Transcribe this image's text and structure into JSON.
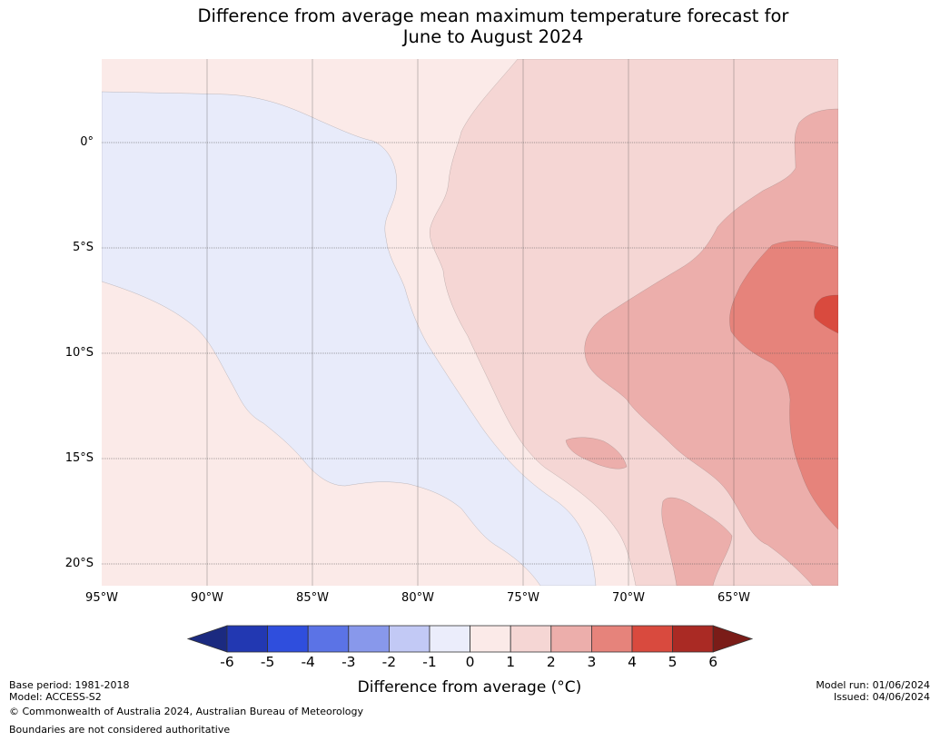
{
  "title": {
    "line1": "Difference from average mean maximum temperature forecast for",
    "line2": "June to August 2024"
  },
  "map": {
    "lat_labels": [
      "0°",
      "5°S",
      "10°S",
      "15°S",
      "20°S"
    ],
    "lon_labels": [
      "95°W",
      "90°W",
      "85°W",
      "80°W",
      "75°W",
      "70°W",
      "65°W"
    ],
    "colors": {
      "band_-1_0": "#e8ebfa",
      "band_0_1": "#fbeae8",
      "band_1_2": "#f5d6d4",
      "band_2_3": "#ecaeab",
      "band_3_4": "#e6837b",
      "band_4_5": "#d94a3e"
    }
  },
  "colorbar": {
    "ticks": [
      "-6",
      "-5",
      "-4",
      "-3",
      "-2",
      "-1",
      "0",
      "1",
      "2",
      "3",
      "4",
      "5",
      "6"
    ],
    "colors": [
      "#1b2a80",
      "#2238b2",
      "#2f4edd",
      "#5b73e6",
      "#8898eb",
      "#c2c9f5",
      "#ebedfb",
      "#fbeae8",
      "#f5d6d4",
      "#ecaeab",
      "#e6837b",
      "#d94a3e",
      "#aa2a24",
      "#7a1c18"
    ],
    "label": "Difference from average (°C)"
  },
  "footer": {
    "base_period": "Base period: 1981-2018",
    "model": "Model: ACCESS-S2",
    "copyright": "© Commonwealth of Australia 2024, Australian Bureau of Meteorology",
    "boundaries": "Boundaries are not considered authoritative",
    "model_run": "Model run: 01/06/2024",
    "issued": "Issued: 04/06/2024"
  }
}
